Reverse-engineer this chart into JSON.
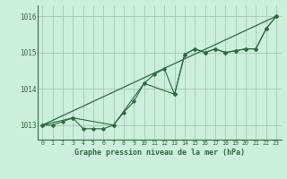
{
  "title": "Graphe pression niveau de la mer (hPa)",
  "bg_color": "#cceedd",
  "grid_color": "#aaccbb",
  "line_color": "#2d6a3f",
  "text_color": "#2d6a3f",
  "xlim": [
    -0.5,
    23.5
  ],
  "ylim": [
    1012.6,
    1016.3
  ],
  "yticks": [
    1013,
    1014,
    1015,
    1016
  ],
  "xticks": [
    0,
    1,
    2,
    3,
    4,
    5,
    6,
    7,
    8,
    9,
    10,
    11,
    12,
    13,
    14,
    15,
    16,
    17,
    18,
    19,
    20,
    21,
    22,
    23
  ],
  "series1_x": [
    0,
    1,
    2,
    3,
    4,
    5,
    6,
    7,
    8,
    9,
    10,
    11,
    12,
    13,
    14,
    15,
    16,
    17,
    18,
    19,
    20,
    21,
    22,
    23
  ],
  "series1_y": [
    1013.0,
    1013.0,
    1013.1,
    1013.2,
    1012.9,
    1012.9,
    1012.9,
    1013.0,
    1013.35,
    1013.65,
    1014.15,
    1014.4,
    1014.55,
    1013.85,
    1014.95,
    1015.1,
    1015.0,
    1015.1,
    1015.0,
    1015.05,
    1015.1,
    1015.1,
    1015.65,
    1016.0
  ],
  "series2_x": [
    0,
    3,
    7,
    10,
    13,
    14,
    15,
    16,
    17,
    18,
    19,
    20,
    21,
    22,
    23
  ],
  "series2_y": [
    1013.0,
    1013.2,
    1013.0,
    1014.15,
    1013.85,
    1014.95,
    1015.1,
    1015.0,
    1015.1,
    1015.0,
    1015.05,
    1015.1,
    1015.1,
    1015.65,
    1016.0
  ],
  "trend_x": [
    0,
    23
  ],
  "trend_y": [
    1013.0,
    1016.0
  ]
}
